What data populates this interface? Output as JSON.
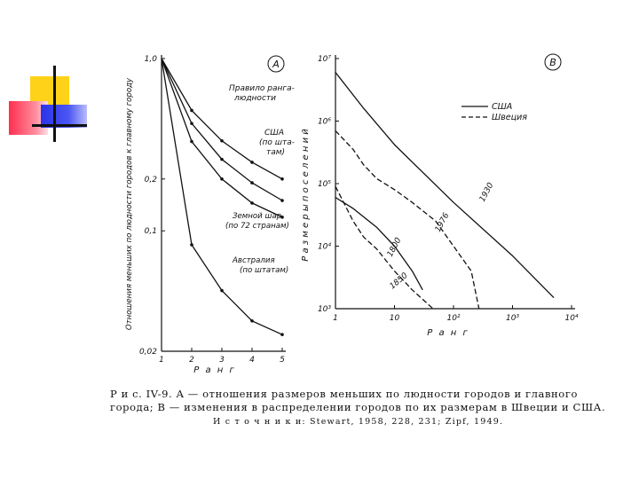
{
  "colors": {
    "ink": "#111111",
    "accent_yellow": "#ffd21a",
    "accent_red": "#ff2e4e",
    "accent_blue": "#2a33e8"
  },
  "panel_a": {
    "tag": "A",
    "ylabel": "Отношения меньших по людности городов к главному городу",
    "xlabel": "Р а н г",
    "labels": {
      "rule": [
        "Правило ранга-",
        "людности"
      ],
      "usa": [
        "США",
        "(по шта-",
        "там)"
      ],
      "world": [
        "Земной шар",
        "(по 72 странам)"
      ],
      "australia": [
        "Австралия",
        "(по штатам)"
      ]
    }
  },
  "panel_b": {
    "tag": "B",
    "ylabel": "Р а з м е р ы   п о с е л е н и й",
    "xlabel": "Р а н г",
    "legend": {
      "usa": "США",
      "sweden": "Швеция"
    },
    "labels": {
      "y1930": "1930",
      "y1976": "1976",
      "y1800": "1800",
      "y1850": "1850"
    }
  },
  "chart_data": [
    {
      "type": "line",
      "panel": "A",
      "title": "",
      "xlabel": "Р а н г",
      "ylabel": "Отношения меньших по людности городов к главному городу",
      "x_ticks": [
        "1",
        "2",
        "3",
        "4",
        "5"
      ],
      "y_ticks": [
        "1,0",
        "0,2",
        "0,1",
        "0,02"
      ],
      "xlim": [
        1,
        5
      ],
      "ylim": [
        0.02,
        1.0
      ],
      "y_scale": "log",
      "series": [
        {
          "name": "Правило ранга-людности",
          "x": [
            1,
            2,
            3,
            4,
            5
          ],
          "y": [
            1.0,
            0.5,
            0.333,
            0.25,
            0.2
          ]
        },
        {
          "name": "США (по штатам)",
          "x": [
            1,
            2,
            3,
            4,
            5
          ],
          "y": [
            1.0,
            0.42,
            0.26,
            0.19,
            0.15
          ]
        },
        {
          "name": "Земной шар (по 72 странам)",
          "x": [
            1,
            2,
            3,
            4,
            5
          ],
          "y": [
            1.0,
            0.33,
            0.2,
            0.145,
            0.12
          ]
        },
        {
          "name": "Австралия (по штатам)",
          "x": [
            1,
            2,
            3,
            4,
            5
          ],
          "y": [
            1.0,
            0.083,
            0.045,
            0.03,
            0.025
          ]
        }
      ]
    },
    {
      "type": "line",
      "panel": "B",
      "title": "",
      "xlabel": "Р а н г",
      "ylabel": "Р а з м е р ы   п о с е л е н и й",
      "x_ticks": [
        "1",
        "10",
        "10²",
        "10³",
        "10⁴"
      ],
      "y_ticks": [
        "10³",
        "10⁴",
        "10⁵",
        "10⁶",
        "10⁷"
      ],
      "x_scale": "log",
      "y_scale": "log",
      "xlim": [
        1,
        10000
      ],
      "ylim": [
        1000,
        10000000
      ],
      "legend": "top-right",
      "series": [
        {
          "name": "США",
          "label": "1930",
          "style": "solid",
          "x": [
            1,
            3,
            10,
            100,
            1000,
            5000
          ],
          "y": [
            6000000,
            1600000,
            420000,
            50000,
            7000,
            1500
          ]
        },
        {
          "name": "Швеция",
          "label": "1976",
          "style": "dashed",
          "x": [
            1,
            2,
            3,
            5,
            10,
            20,
            50,
            100,
            200,
            270
          ],
          "y": [
            700000,
            350000,
            200000,
            120000,
            80000,
            50000,
            25000,
            10000,
            4000,
            1000
          ]
        },
        {
          "name": "США",
          "label": "1800",
          "style": "solid",
          "x": [
            1,
            2,
            5,
            10,
            20,
            30
          ],
          "y": [
            60000,
            40000,
            20000,
            10000,
            4000,
            2000
          ]
        },
        {
          "name": "Швеция",
          "label": "1850",
          "style": "dashed",
          "x": [
            1,
            2,
            3,
            5,
            10,
            20,
            45
          ],
          "y": [
            90000,
            25000,
            14000,
            9000,
            4000,
            2000,
            1000
          ]
        }
      ]
    }
  ],
  "caption": {
    "line1": "Р и с.  IV-9.  A  — отношения размеров меньших по людности городов и главного",
    "line2": "города;  B  — изменения в распределении городов по их размерам в Швеции и США.",
    "line3": "И с т о ч н и к и:  Stewart,  1958,  228,  231;  Zipf,  1949."
  }
}
